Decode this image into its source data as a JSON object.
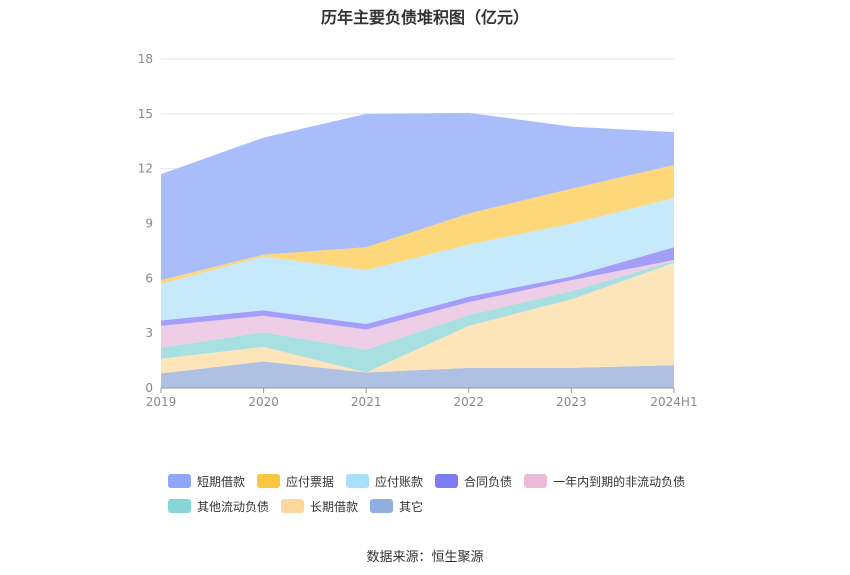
{
  "title": "历年主要负债堆积图（亿元）",
  "source": "数据来源：恒生聚源",
  "colors": {
    "短期借款": "#a9bdfb",
    "应付票据": "#fdd77a",
    "应付账款": "#c6e9fb",
    "合同负债": "#a59ef8",
    "一年内到期的非流动负债": "#eecde7",
    "其他流动负债": "#a8e0e2",
    "长期借款": "#fde4b9",
    "其它": "#afc1e3"
  },
  "legend_colors": {
    "短期借款": "#8fa6fa",
    "应付票据": "#fbc63f",
    "应付账款": "#aadff9",
    "合同负债": "#7d7cf2",
    "一年内到期的非流动负债": "#ebbad9",
    "其他流动负债": "#86d6d8",
    "长期借款": "#fdd79b",
    "其它": "#91aee0"
  },
  "chart_data": {
    "type": "area",
    "stacked": true,
    "title": "历年主要负债堆积图（亿元）",
    "x": [
      "2019",
      "2020",
      "2021",
      "2022",
      "2023",
      "2024H1"
    ],
    "ylim": [
      0,
      18
    ],
    "yticks": [
      0,
      3,
      6,
      9,
      12,
      15,
      18
    ],
    "grid": true,
    "legend_position": "bottom",
    "series": [
      {
        "name": "其它",
        "values": [
          0.8,
          1.45,
          0.85,
          1.1,
          1.1,
          1.25
        ]
      },
      {
        "name": "长期借款",
        "values": [
          0.8,
          0.8,
          0.0,
          2.3,
          3.75,
          5.6
        ]
      },
      {
        "name": "其他流动负债",
        "values": [
          0.6,
          0.8,
          1.25,
          0.6,
          0.45,
          0.1
        ]
      },
      {
        "name": "一年内到期的非流动负债",
        "values": [
          1.2,
          0.9,
          1.1,
          0.7,
          0.6,
          0.05
        ]
      },
      {
        "name": "合同负债",
        "values": [
          0.3,
          0.3,
          0.3,
          0.3,
          0.2,
          0.7
        ]
      },
      {
        "name": "应付账款",
        "values": [
          2.0,
          2.95,
          2.95,
          2.85,
          2.9,
          2.7
        ]
      },
      {
        "name": "应付票据",
        "values": [
          0.2,
          0.1,
          1.25,
          1.7,
          1.9,
          1.8
        ]
      },
      {
        "name": "短期借款",
        "values": [
          5.8,
          6.4,
          7.3,
          5.5,
          3.4,
          1.8
        ]
      }
    ],
    "legend_order": [
      "短期借款",
      "应付票据",
      "应付账款",
      "合同负债",
      "一年内到期的非流动负债",
      "其他流动负债",
      "长期借款",
      "其它"
    ]
  }
}
